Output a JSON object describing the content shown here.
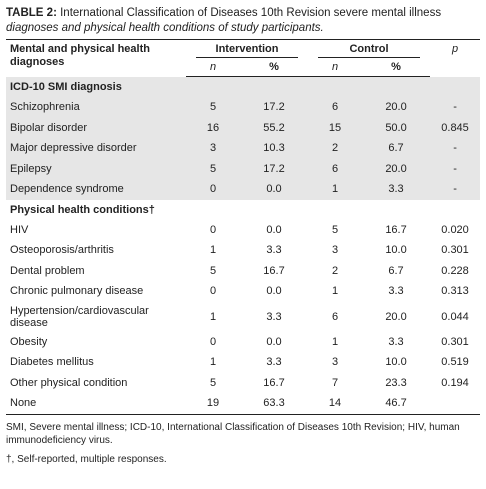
{
  "caption": {
    "label": "TABLE 2:",
    "text": " International Classification of Diseases 10th Revision severe mental illness ",
    "italic": "diagnoses and physical health conditions of study participants."
  },
  "header": {
    "col_title": "Mental and physical health diagnoses",
    "group1": "Intervention",
    "group2": "Control",
    "p": "p",
    "n": "n",
    "pct": "%"
  },
  "sections": [
    {
      "title": "ICD-10 SMI diagnosis",
      "rows": [
        {
          "label": "Schizophrenia",
          "n1": "5",
          "p1": "17.2",
          "n2": "6",
          "p2": "20.0",
          "p": "-"
        },
        {
          "label": "Bipolar disorder",
          "n1": "16",
          "p1": "55.2",
          "n2": "15",
          "p2": "50.0",
          "p": "0.845"
        },
        {
          "label": "Major depressive disorder",
          "n1": "3",
          "p1": "10.3",
          "n2": "2",
          "p2": "6.7",
          "p": "-"
        },
        {
          "label": "Epilepsy",
          "n1": "5",
          "p1": "17.2",
          "n2": "6",
          "p2": "20.0",
          "p": "-"
        },
        {
          "label": "Dependence syndrome",
          "n1": "0",
          "p1": "0.0",
          "n2": "1",
          "p2": "3.3",
          "p": "-"
        }
      ]
    },
    {
      "title": "Physical health conditions†",
      "rows": [
        {
          "label": "HIV",
          "n1": "0",
          "p1": "0.0",
          "n2": "5",
          "p2": "16.7",
          "p": "0.020"
        },
        {
          "label": "Osteoporosis/arthritis",
          "n1": "1",
          "p1": "3.3",
          "n2": "3",
          "p2": "10.0",
          "p": "0.301"
        },
        {
          "label": "Dental problem",
          "n1": "5",
          "p1": "16.7",
          "n2": "2",
          "p2": "6.7",
          "p": "0.228"
        },
        {
          "label": "Chronic pulmonary disease",
          "n1": "0",
          "p1": "0.0",
          "n2": "1",
          "p2": "3.3",
          "p": "0.313"
        },
        {
          "label": "Hypertension/cardiovascular disease",
          "n1": "1",
          "p1": "3.3",
          "n2": "6",
          "p2": "20.0",
          "p": "0.044"
        },
        {
          "label": "Obesity",
          "n1": "0",
          "p1": "0.0",
          "n2": "1",
          "p2": "3.3",
          "p": "0.301"
        },
        {
          "label": "Diabetes mellitus",
          "n1": "1",
          "p1": "3.3",
          "n2": "3",
          "p2": "10.0",
          "p": "0.519"
        },
        {
          "label": "Other physical condition",
          "n1": "5",
          "p1": "16.7",
          "n2": "7",
          "p2": "23.3",
          "p": "0.194"
        },
        {
          "label": "None",
          "n1": "19",
          "p1": "63.3",
          "n2": "14",
          "p2": "46.7",
          "p": ""
        }
      ]
    }
  ],
  "footnotes": [
    "SMI, Severe mental illness; ICD-10, International Classification of Diseases 10th Revision; HIV, human immunodeficiency virus.",
    "†, Self-reported, multiple responses."
  ]
}
